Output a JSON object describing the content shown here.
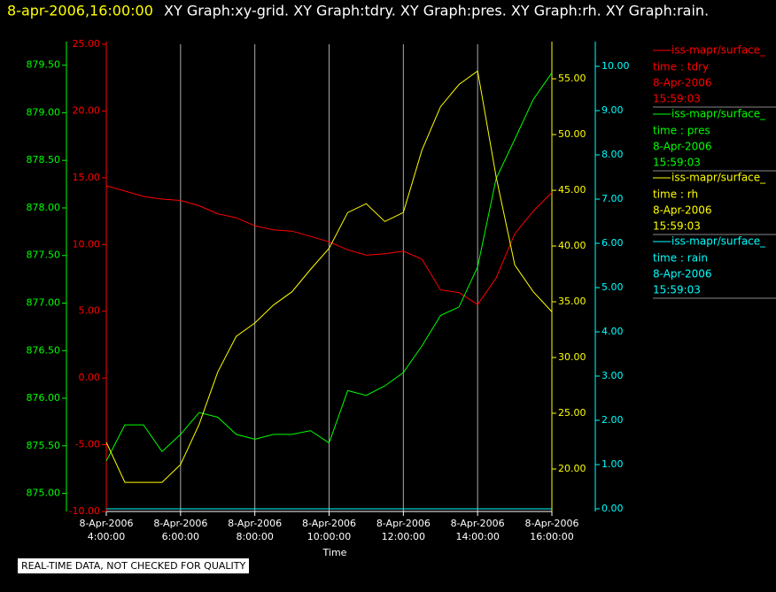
{
  "chart_data": {
    "type": "line",
    "title": "8-apr-2006,16:00:00",
    "subtitle": "XY Graph:xy-grid.  XY Graph:tdry.  XY Graph:pres.  XY Graph:rh.  XY Graph:rain.",
    "x_label": "Time",
    "footer": "REAL-TIME DATA, NOT CHECKED FOR QUALITY",
    "grid": true,
    "xlim": [
      4,
      16
    ],
    "xticks": [
      {
        "value": 4,
        "label": "8-Apr-2006\n4:00:00"
      },
      {
        "value": 6,
        "label": "8-Apr-2006\n6:00:00"
      },
      {
        "value": 8,
        "label": "8-Apr-2006\n8:00:00"
      },
      {
        "value": 10,
        "label": "8-Apr-2006\n10:00:00"
      },
      {
        "value": 12,
        "label": "8-Apr-2006\n12:00:00"
      },
      {
        "value": 14,
        "label": "8-Apr-2006\n14:00:00"
      },
      {
        "value": 16,
        "label": "8-Apr-2006\n16:00:00"
      }
    ],
    "x": [
      4,
      4.5,
      5,
      5.5,
      6,
      6.5,
      7,
      7.5,
      8,
      8.5,
      9,
      9.5,
      10,
      10.5,
      11,
      11.5,
      12,
      12.5,
      13,
      13.5,
      14,
      14.5,
      15,
      15.5,
      16
    ],
    "y_axes": [
      {
        "color": "#00ff00",
        "ylim": [
          874.81,
          879.72
        ],
        "yticks": [
          {
            "value": 875,
            "label": "875.00"
          },
          {
            "value": 875.5,
            "label": "875.50"
          },
          {
            "value": 876,
            "label": "876.00"
          },
          {
            "value": 876.5,
            "label": "876.50"
          },
          {
            "value": 877,
            "label": "877.00"
          },
          {
            "value": 877.5,
            "label": "877.50"
          },
          {
            "value": 878,
            "label": "878.00"
          },
          {
            "value": 878.5,
            "label": "878.50"
          },
          {
            "value": 879,
            "label": "879.00"
          },
          {
            "value": 879.5,
            "label": "879.50"
          }
        ]
      },
      {
        "color": "#ff0000",
        "ylim": [
          -10,
          25
        ],
        "yticks": [
          {
            "value": -10,
            "label": "-10.00"
          },
          {
            "value": -5,
            "label": "-5.00"
          },
          {
            "value": 0,
            "label": "0.00"
          },
          {
            "value": 5,
            "label": "5.00"
          },
          {
            "value": 10,
            "label": "10.00"
          },
          {
            "value": 15,
            "label": "15.00"
          },
          {
            "value": 20,
            "label": "20.00"
          },
          {
            "value": 25,
            "label": "25.00"
          }
        ]
      },
      {
        "color": "#ffff00",
        "ylim": [
          16.19,
          58.1
        ],
        "yticks": [
          {
            "value": 20,
            "label": "20.00"
          },
          {
            "value": 25,
            "label": "25.00"
          },
          {
            "value": 30,
            "label": "30.00"
          },
          {
            "value": 35,
            "label": "35.00"
          },
          {
            "value": 40,
            "label": "40.00"
          },
          {
            "value": 45,
            "label": "45.00"
          },
          {
            "value": 50,
            "label": "50.00"
          },
          {
            "value": 55,
            "label": "55.00"
          }
        ]
      },
      {
        "color": "#00ffff",
        "ylim": [
          -0.06,
          10.5
        ],
        "yticks": [
          {
            "value": 0,
            "label": "0.00"
          },
          {
            "value": 1,
            "label": "1.00"
          },
          {
            "value": 2,
            "label": "2.00"
          },
          {
            "value": 3,
            "label": "3.00"
          },
          {
            "value": 4,
            "label": "4.00"
          },
          {
            "value": 5,
            "label": "5.00"
          },
          {
            "value": 6,
            "label": "6.00"
          },
          {
            "value": 7,
            "label": "7.00"
          },
          {
            "value": 8,
            "label": "8.00"
          },
          {
            "value": 9,
            "label": "9.00"
          },
          {
            "value": 10,
            "label": "10.00"
          }
        ]
      }
    ],
    "series": [
      {
        "name": "iss-mapr/surface_",
        "color": "#ff0000",
        "axis": 1,
        "legend_lines": [
          "time : tdry",
          "8-Apr-2006",
          "15:59:03"
        ],
        "values": [
          14.4,
          14.0,
          13.6,
          13.4,
          13.3,
          12.9,
          12.3,
          12.0,
          11.4,
          11.1,
          11.0,
          10.6,
          10.2,
          9.6,
          9.2,
          9.3,
          9.5,
          8.9,
          6.6,
          6.4,
          5.5,
          7.5,
          10.8,
          12.5,
          13.9
        ]
      },
      {
        "name": "iss-mapr/surface_",
        "color": "#00ff00",
        "axis": 0,
        "legend_lines": [
          "time : pres",
          "8-Apr-2006",
          "15:59:03"
        ],
        "values": [
          875.34,
          875.72,
          875.72,
          875.44,
          875.62,
          875.85,
          875.8,
          875.62,
          875.57,
          875.62,
          875.62,
          875.66,
          875.53,
          876.08,
          876.03,
          876.13,
          876.27,
          876.55,
          876.87,
          876.96,
          877.38,
          878.31,
          878.72,
          879.14,
          879.42
        ]
      },
      {
        "name": "iss-mapr/surface_",
        "color": "#ffff00",
        "axis": 2,
        "legend_lines": [
          "time : rh",
          "8-Apr-2006",
          "15:59:03"
        ],
        "values": [
          22.4,
          18.8,
          18.8,
          18.8,
          20.4,
          24.0,
          28.7,
          31.9,
          33.1,
          34.7,
          35.9,
          37.9,
          39.8,
          43.0,
          43.8,
          42.2,
          43.0,
          48.6,
          52.5,
          54.5,
          55.7,
          46.2,
          38.3,
          35.9,
          34.1
        ]
      },
      {
        "name": "iss-mapr/surface_",
        "color": "#00ffff",
        "axis": 3,
        "legend_lines": [
          "time : rain",
          "8-Apr-2006",
          "15:59:03"
        ],
        "values": [
          0,
          0,
          0,
          0,
          0,
          0,
          0,
          0,
          0,
          0,
          0,
          0,
          0,
          0,
          0,
          0,
          0,
          0,
          0,
          0,
          0,
          0,
          0,
          0,
          0
        ]
      }
    ]
  }
}
